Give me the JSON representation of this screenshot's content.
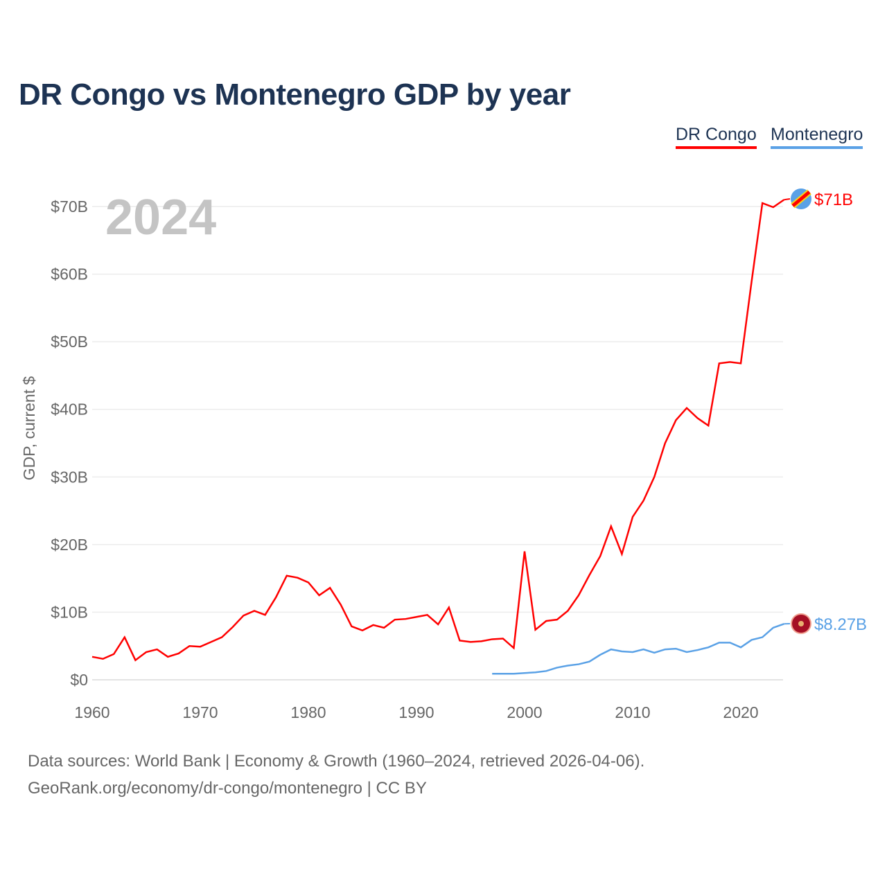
{
  "chart_data": {
    "type": "line",
    "title": "DR Congo vs Montenegro GDP by year",
    "ylabel": "GDP, current $",
    "xlabel": "",
    "year_watermark": "2024",
    "xlim": [
      1960,
      2024
    ],
    "ylim": [
      0,
      70
    ],
    "x_ticks": [
      "1960",
      "1970",
      "1980",
      "1990",
      "2000",
      "2010",
      "2020"
    ],
    "y_ticks": [
      "$0",
      "$10B",
      "$20B",
      "$30B",
      "$40B",
      "$50B",
      "$60B",
      "$70B"
    ],
    "grid": true,
    "legend_placement": "top-right",
    "series": [
      {
        "name": "DR Congo",
        "color": "#ff0000",
        "end_label": "$71B",
        "start_year": 1960,
        "values": [
          3.4,
          3.1,
          3.8,
          6.3,
          2.9,
          4.1,
          4.5,
          3.4,
          3.9,
          5.0,
          4.9,
          5.6,
          6.3,
          7.8,
          9.5,
          10.2,
          9.6,
          12.2,
          15.4,
          15.1,
          14.4,
          12.5,
          13.6,
          11.1,
          7.9,
          7.3,
          8.1,
          7.7,
          8.9,
          9.0,
          9.3,
          9.6,
          8.2,
          10.7,
          5.8,
          5.6,
          5.7,
          6.0,
          6.1,
          4.7,
          19.0,
          7.4,
          8.7,
          8.9,
          10.2,
          12.5,
          15.5,
          18.3,
          22.7,
          18.6,
          24.1,
          26.5,
          30.0,
          35.0,
          38.4,
          40.2,
          38.7,
          37.6,
          46.8,
          47.0,
          46.8,
          58.9,
          70.5,
          69.9,
          71.0
        ]
      },
      {
        "name": "Montenegro",
        "color": "#5aa1e6",
        "end_label": "$8.27B",
        "start_year": 1997,
        "values": [
          0.9,
          0.9,
          0.9,
          1.0,
          1.1,
          1.3,
          1.8,
          2.1,
          2.3,
          2.7,
          3.7,
          4.5,
          4.2,
          4.1,
          4.5,
          4.0,
          4.5,
          4.6,
          4.1,
          4.4,
          4.8,
          5.5,
          5.5,
          4.8,
          5.9,
          6.3,
          7.7,
          8.27
        ]
      }
    ]
  },
  "footer": {
    "line1": "Data sources: World Bank | Economy & Growth (1960–2024, retrieved 2026-04-06).",
    "line2": "GeoRank.org/economy/dr-congo/montenegro | CC BY"
  }
}
